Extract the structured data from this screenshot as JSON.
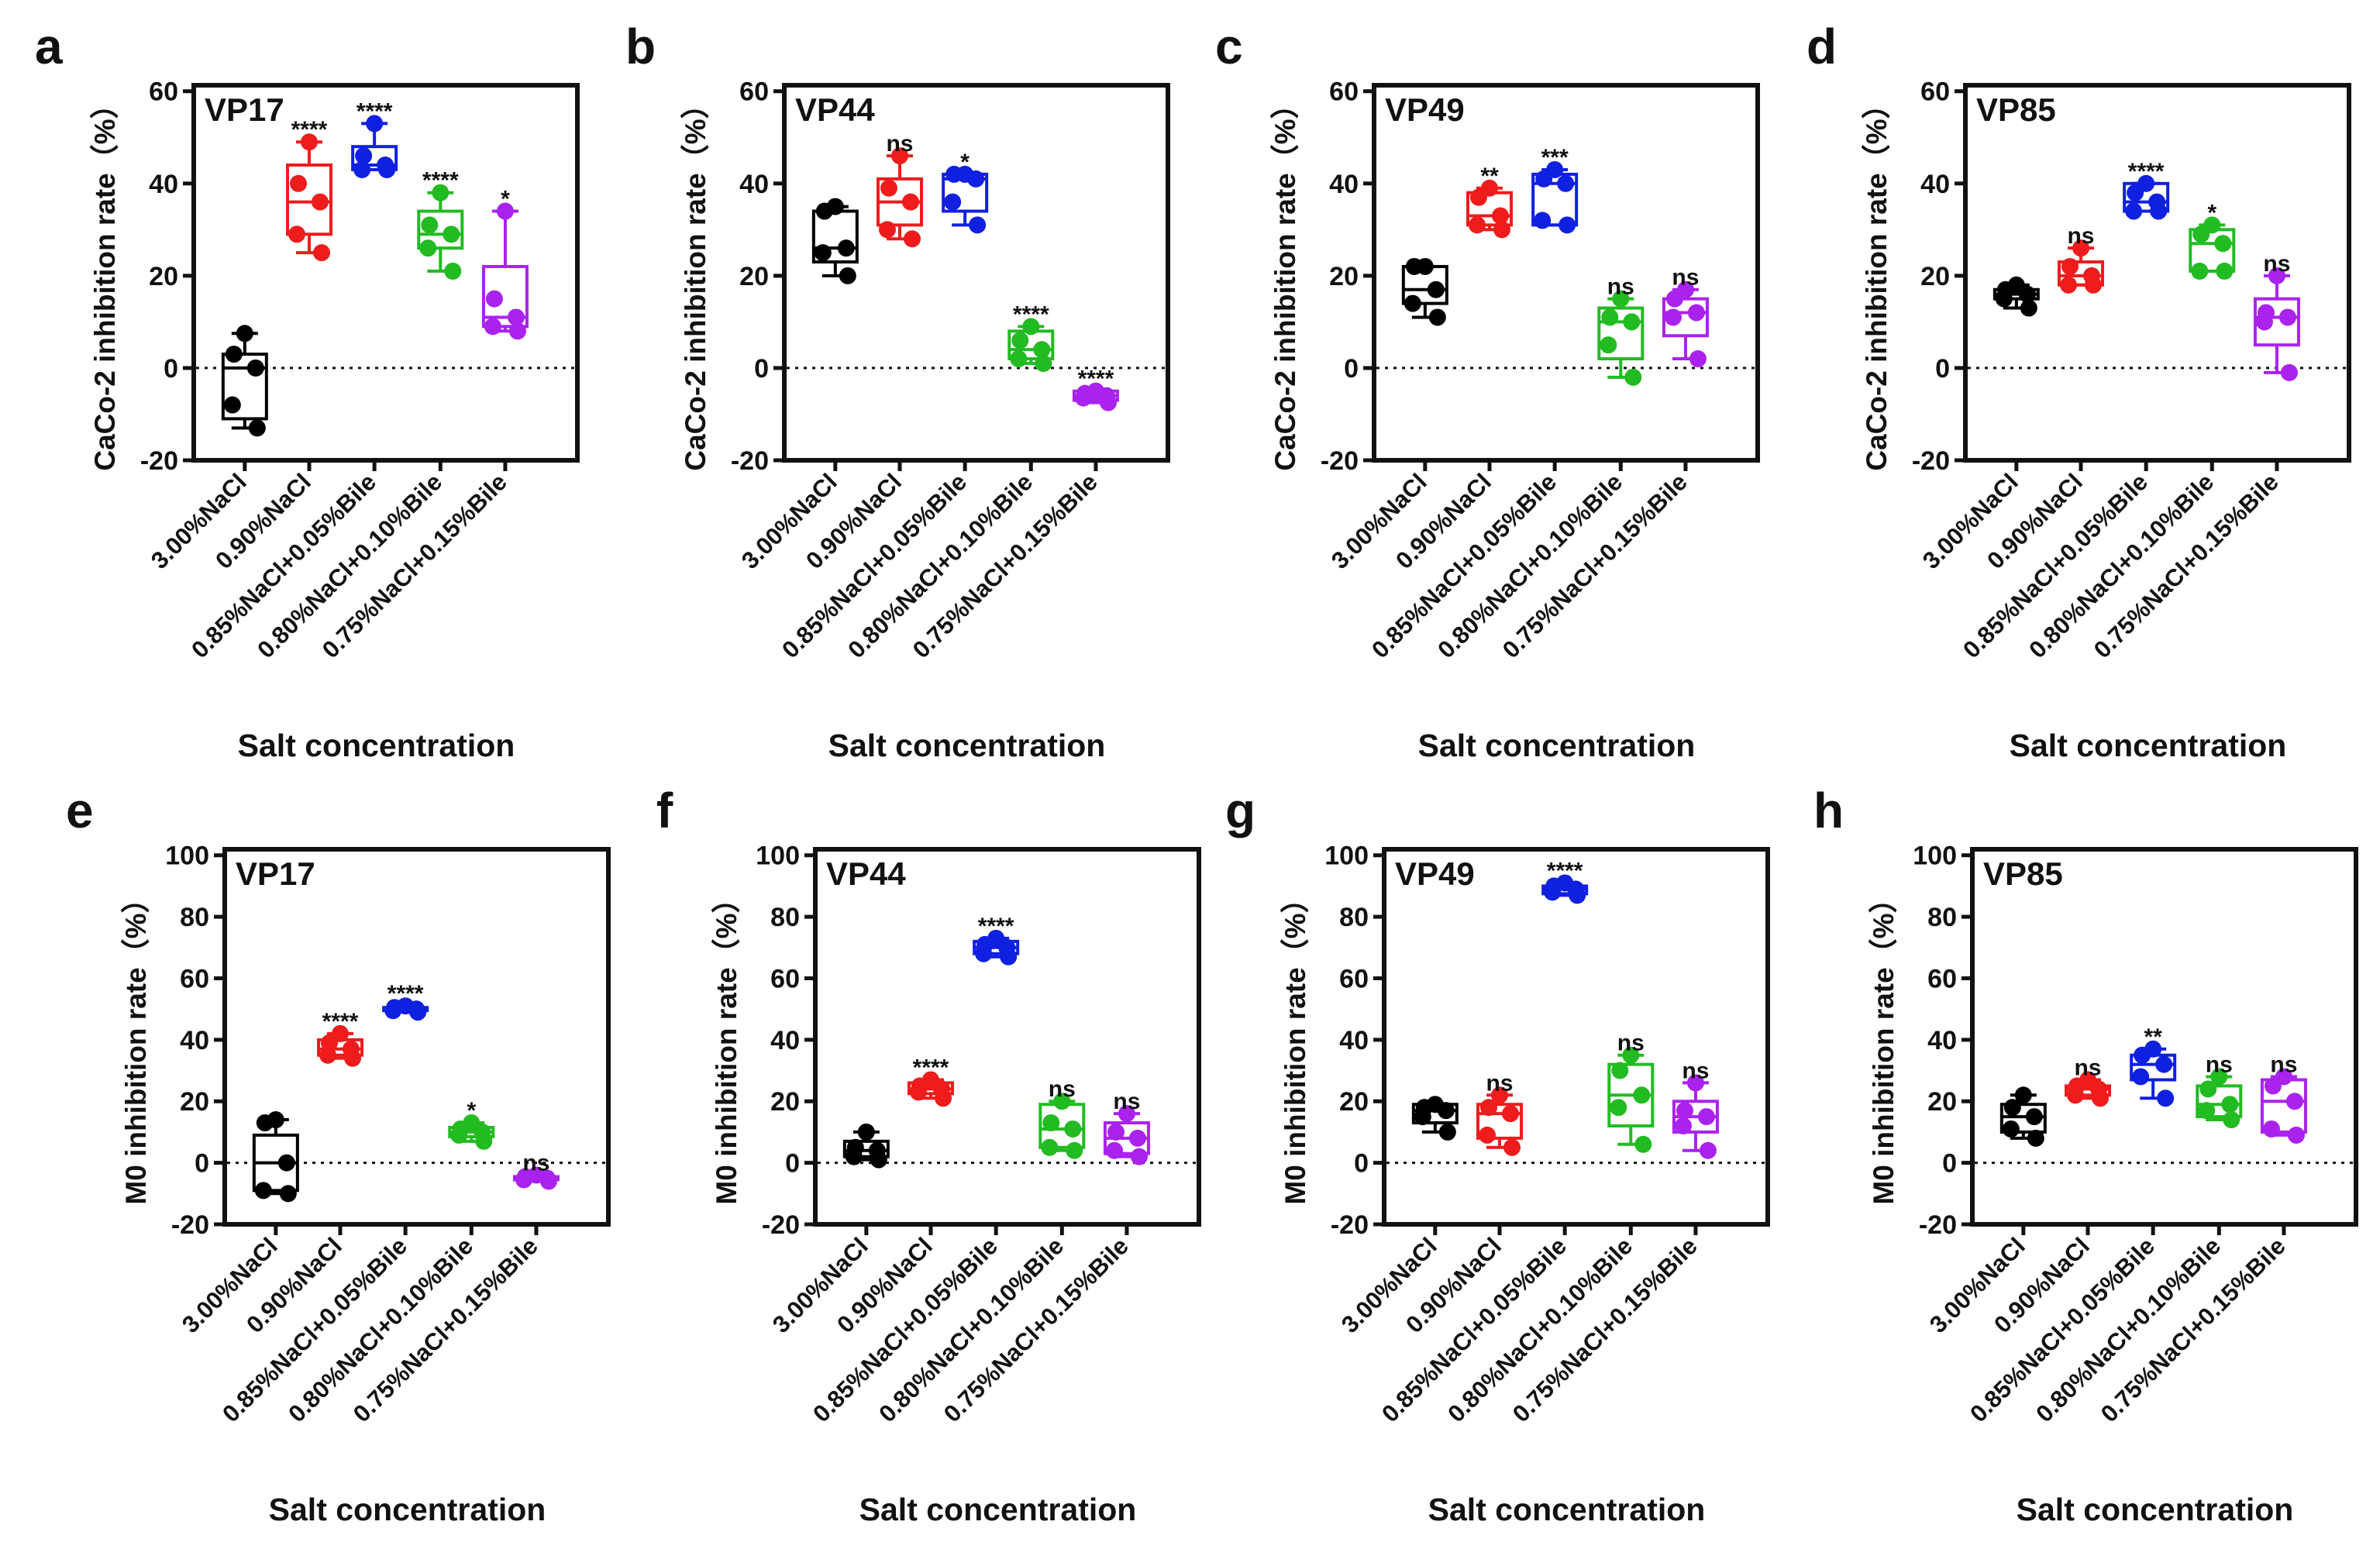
{
  "chart_data": [
    {
      "type": "box",
      "panel_label": "a",
      "title": "VP17",
      "ylabel": "CaCo-2 inhibition rate（%）",
      "xlabel": "Salt concentration",
      "ylim": [
        -20,
        60
      ],
      "yticks": [
        "-20",
        "0",
        "20",
        "40",
        "60"
      ],
      "categories": [
        "3.00%NaCl",
        "0.90%NaCl",
        "0.85%NaCl+0.05%Bile",
        "0.80%NaCl+0.10%Bile",
        "0.75%NaCl+0.15%Bile"
      ],
      "colors": [
        "#000000",
        "#ee1c1c",
        "#1020e0",
        "#22bb22",
        "#aa22ee"
      ],
      "groups": [
        {
          "points": [
            7.5,
            3,
            0,
            -8,
            -13
          ],
          "box": [
            -13,
            -11,
            0,
            3,
            7.5
          ],
          "sig": ""
        },
        {
          "points": [
            49,
            40,
            36,
            29,
            25
          ],
          "box": [
            25,
            29,
            36,
            44,
            49
          ],
          "sig": "****"
        },
        {
          "points": [
            53,
            46,
            44,
            43,
            43
          ],
          "box": [
            43,
            43,
            44,
            48,
            53
          ],
          "sig": "****"
        },
        {
          "points": [
            38,
            31,
            29,
            26,
            21
          ],
          "box": [
            21,
            26,
            29,
            34,
            38
          ],
          "sig": "****"
        },
        {
          "points": [
            34,
            15,
            11,
            9,
            8
          ],
          "box": [
            8,
            9,
            11,
            22,
            34
          ],
          "sig": "*"
        }
      ]
    },
    {
      "type": "box",
      "panel_label": "b",
      "title": "VP44",
      "ylabel": "CaCo-2 inhibition rate（%）",
      "xlabel": "Salt concentration",
      "ylim": [
        -20,
        60
      ],
      "yticks": [
        "-20",
        "0",
        "20",
        "40",
        "60"
      ],
      "categories": [
        "3.00%NaCl",
        "0.90%NaCl",
        "0.85%NaCl+0.05%Bile",
        "0.80%NaCl+0.10%Bile",
        "0.75%NaCl+0.15%Bile"
      ],
      "colors": [
        "#000000",
        "#ee1c1c",
        "#1020e0",
        "#22bb22",
        "#aa22ee"
      ],
      "groups": [
        {
          "points": [
            35,
            34,
            26,
            25,
            20
          ],
          "box": [
            20,
            23,
            26,
            34,
            35
          ],
          "sig": ""
        },
        {
          "points": [
            46,
            39,
            36,
            30,
            28
          ],
          "box": [
            28,
            31,
            36,
            41,
            46
          ],
          "sig": "ns"
        },
        {
          "points": [
            42,
            42,
            41,
            36,
            31
          ],
          "box": [
            31,
            34,
            41,
            42,
            42
          ],
          "sig": "*"
        },
        {
          "points": [
            9,
            6,
            4,
            2,
            1
          ],
          "box": [
            1,
            2,
            4,
            8,
            9
          ],
          "sig": "****"
        },
        {
          "points": [
            -5,
            -5.5,
            -6,
            -6.5,
            -7.5
          ],
          "box": [
            -7.5,
            -7,
            -6,
            -5,
            -5
          ],
          "sig": "****"
        }
      ]
    },
    {
      "type": "box",
      "panel_label": "c",
      "title": "VP49",
      "ylabel": "CaCo-2 inhibition rate（%）",
      "xlabel": "Salt concentration",
      "ylim": [
        -20,
        60
      ],
      "yticks": [
        "-20",
        "0",
        "20",
        "40",
        "60"
      ],
      "categories": [
        "3.00%NaCl",
        "0.90%NaCl",
        "0.85%NaCl+0.05%Bile",
        "0.80%NaCl+0.10%Bile",
        "0.75%NaCl+0.15%Bile"
      ],
      "colors": [
        "#000000",
        "#ee1c1c",
        "#1020e0",
        "#22bb22",
        "#aa22ee"
      ],
      "groups": [
        {
          "points": [
            22,
            22,
            17,
            14,
            11
          ],
          "box": [
            11,
            14,
            17,
            22,
            22
          ],
          "sig": ""
        },
        {
          "points": [
            39,
            37,
            33,
            31,
            30
          ],
          "box": [
            30,
            31,
            33,
            38,
            39
          ],
          "sig": "**"
        },
        {
          "points": [
            43,
            41,
            40,
            32,
            31
          ],
          "box": [
            31,
            31,
            40,
            42,
            43
          ],
          "sig": "***"
        },
        {
          "points": [
            15,
            11,
            10,
            5,
            -2
          ],
          "box": [
            -2,
            2,
            10,
            13,
            15
          ],
          "sig": "ns"
        },
        {
          "points": [
            17,
            15,
            12,
            11,
            2
          ],
          "box": [
            2,
            7,
            12,
            15,
            17
          ],
          "sig": "ns"
        }
      ]
    },
    {
      "type": "box",
      "panel_label": "d",
      "title": "VP85",
      "ylabel": "CaCo-2 inhibition rate（%）",
      "xlabel": "Salt concentration",
      "ylim": [
        -20,
        60
      ],
      "yticks": [
        "-20",
        "0",
        "20",
        "40",
        "60"
      ],
      "categories": [
        "3.00%NaCl",
        "0.90%NaCl",
        "0.85%NaCl+0.05%Bile",
        "0.80%NaCl+0.10%Bile",
        "0.75%NaCl+0.15%Bile"
      ],
      "colors": [
        "#000000",
        "#ee1c1c",
        "#1020e0",
        "#22bb22",
        "#aa22ee"
      ],
      "groups": [
        {
          "points": [
            18,
            17,
            16,
            15,
            13
          ],
          "box": [
            13,
            15,
            16,
            17,
            18
          ],
          "sig": ""
        },
        {
          "points": [
            26,
            22,
            20,
            18,
            18
          ],
          "box": [
            18,
            18,
            20,
            23,
            26
          ],
          "sig": "ns"
        },
        {
          "points": [
            40,
            38,
            36,
            34,
            34
          ],
          "box": [
            34,
            34,
            36,
            40,
            40
          ],
          "sig": "****"
        },
        {
          "points": [
            31,
            29,
            27,
            21,
            21
          ],
          "box": [
            21,
            21,
            27,
            30,
            31
          ],
          "sig": "*"
        },
        {
          "points": [
            20,
            12,
            11,
            10,
            -1
          ],
          "box": [
            -1,
            5,
            11,
            15,
            20
          ],
          "sig": "ns"
        }
      ]
    },
    {
      "type": "box",
      "panel_label": "e",
      "title": "VP17",
      "ylabel": "M0 inhibition rate（%）",
      "xlabel": "Salt concentration",
      "ylim": [
        -20,
        100
      ],
      "yticks": [
        "-20",
        "0",
        "20",
        "40",
        "60",
        "80",
        "100"
      ],
      "categories": [
        "3.00%NaCl",
        "0.90%NaCl",
        "0.85%NaCl+0.05%Bile",
        "0.80%NaCl+0.10%Bile",
        "0.75%NaCl+0.15%Bile"
      ],
      "colors": [
        "#000000",
        "#ee1c1c",
        "#1020e0",
        "#22bb22",
        "#aa22ee"
      ],
      "groups": [
        {
          "points": [
            14,
            13,
            0,
            -9,
            -10
          ],
          "box": [
            -10,
            -9,
            0,
            9,
            14
          ],
          "sig": ""
        },
        {
          "points": [
            42,
            39,
            37,
            35,
            34
          ],
          "box": [
            34,
            35,
            37,
            40,
            42
          ],
          "sig": "****"
        },
        {
          "points": [
            51,
            50.5,
            50,
            49.5,
            49
          ],
          "box": [
            49,
            49.5,
            50,
            50.5,
            51
          ],
          "sig": "****"
        },
        {
          "points": [
            13,
            11,
            10,
            9,
            7
          ],
          "box": [
            7,
            8.5,
            10,
            11.5,
            13
          ],
          "sig": "*"
        },
        {
          "points": [
            -4,
            -4.5,
            -5,
            -5.5,
            -6
          ],
          "box": [
            -6,
            -5.5,
            -5,
            -4.5,
            -4
          ],
          "sig": "ns"
        }
      ]
    },
    {
      "type": "box",
      "panel_label": "f",
      "title": "VP44",
      "ylabel": "M0 inhibition rate（%）",
      "xlabel": "Salt concentration",
      "ylim": [
        -20,
        100
      ],
      "yticks": [
        "-20",
        "0",
        "20",
        "40",
        "60",
        "80",
        "100"
      ],
      "categories": [
        "3.00%NaCl",
        "0.90%NaCl",
        "0.85%NaCl+0.05%Bile",
        "0.80%NaCl+0.10%Bile",
        "0.75%NaCl+0.15%Bile"
      ],
      "colors": [
        "#000000",
        "#ee1c1c",
        "#1020e0",
        "#22bb22",
        "#aa22ee"
      ],
      "groups": [
        {
          "points": [
            10,
            5,
            4,
            2,
            1
          ],
          "box": [
            1,
            2,
            4,
            7,
            10
          ],
          "sig": ""
        },
        {
          "points": [
            27,
            25,
            24,
            23,
            21
          ],
          "box": [
            21,
            22.5,
            24,
            26,
            27
          ],
          "sig": "****"
        },
        {
          "points": [
            73,
            71,
            70,
            68,
            67
          ],
          "box": [
            67,
            68,
            70,
            72,
            73
          ],
          "sig": "****"
        },
        {
          "points": [
            20,
            13,
            11,
            5,
            4
          ],
          "box": [
            4,
            5,
            11,
            19,
            20
          ],
          "sig": "ns"
        },
        {
          "points": [
            16,
            10,
            8,
            4,
            2
          ],
          "box": [
            2,
            3,
            8,
            13,
            16
          ],
          "sig": "ns"
        }
      ]
    },
    {
      "type": "box",
      "panel_label": "g",
      "title": "VP49",
      "ylabel": "M0 inhibition rate（%）",
      "xlabel": "Salt concentration",
      "ylim": [
        -20,
        100
      ],
      "yticks": [
        "-20",
        "0",
        "20",
        "40",
        "60",
        "80",
        "100"
      ],
      "categories": [
        "3.00%NaCl",
        "0.90%NaCl",
        "0.85%NaCl+0.05%Bile",
        "0.80%NaCl+0.10%Bile",
        "0.75%NaCl+0.15%Bile"
      ],
      "colors": [
        "#000000",
        "#ee1c1c",
        "#1020e0",
        "#22bb22",
        "#aa22ee"
      ],
      "groups": [
        {
          "points": [
            19,
            18,
            17,
            15,
            10
          ],
          "box": [
            10,
            13,
            17,
            19,
            19
          ],
          "sig": ""
        },
        {
          "points": [
            22,
            18,
            16,
            9,
            5
          ],
          "box": [
            5,
            8,
            16,
            19,
            22
          ],
          "sig": "ns"
        },
        {
          "points": [
            91,
            90,
            89,
            88,
            87
          ],
          "box": [
            87,
            87.5,
            89,
            90,
            91
          ],
          "sig": "****"
        },
        {
          "points": [
            35,
            30,
            22,
            18,
            6
          ],
          "box": [
            6,
            12,
            22,
            32,
            35
          ],
          "sig": "ns"
        },
        {
          "points": [
            26,
            17,
            15,
            12,
            4
          ],
          "box": [
            4,
            10,
            15,
            20,
            26
          ],
          "sig": "ns"
        }
      ]
    },
    {
      "type": "box",
      "panel_label": "h",
      "title": "VP85",
      "ylabel": "M0 inhibition rate（%）",
      "xlabel": "Salt concentration",
      "ylim": [
        -20,
        100
      ],
      "yticks": [
        "-20",
        "0",
        "20",
        "40",
        "60",
        "80",
        "100"
      ],
      "categories": [
        "3.00%NaCl",
        "0.90%NaCl",
        "0.85%NaCl+0.05%Bile",
        "0.80%NaCl+0.10%Bile",
        "0.75%NaCl+0.15%Bile"
      ],
      "colors": [
        "#000000",
        "#ee1c1c",
        "#1020e0",
        "#22bb22",
        "#aa22ee"
      ],
      "groups": [
        {
          "points": [
            22,
            18,
            15,
            11,
            8
          ],
          "box": [
            8,
            10,
            15,
            19,
            22
          ],
          "sig": ""
        },
        {
          "points": [
            27,
            25,
            24,
            22,
            21
          ],
          "box": [
            21,
            22,
            24,
            25,
            27
          ],
          "sig": "ns"
        },
        {
          "points": [
            37,
            35,
            32,
            28,
            21
          ],
          "box": [
            21,
            27,
            32,
            35,
            37
          ],
          "sig": "**"
        },
        {
          "points": [
            28,
            24,
            19,
            17,
            14
          ],
          "box": [
            14,
            15,
            19,
            25,
            28
          ],
          "sig": "ns"
        },
        {
          "points": [
            28,
            25,
            20,
            11,
            9
          ],
          "box": [
            9,
            10,
            20,
            27,
            28
          ],
          "sig": "ns"
        }
      ]
    }
  ]
}
